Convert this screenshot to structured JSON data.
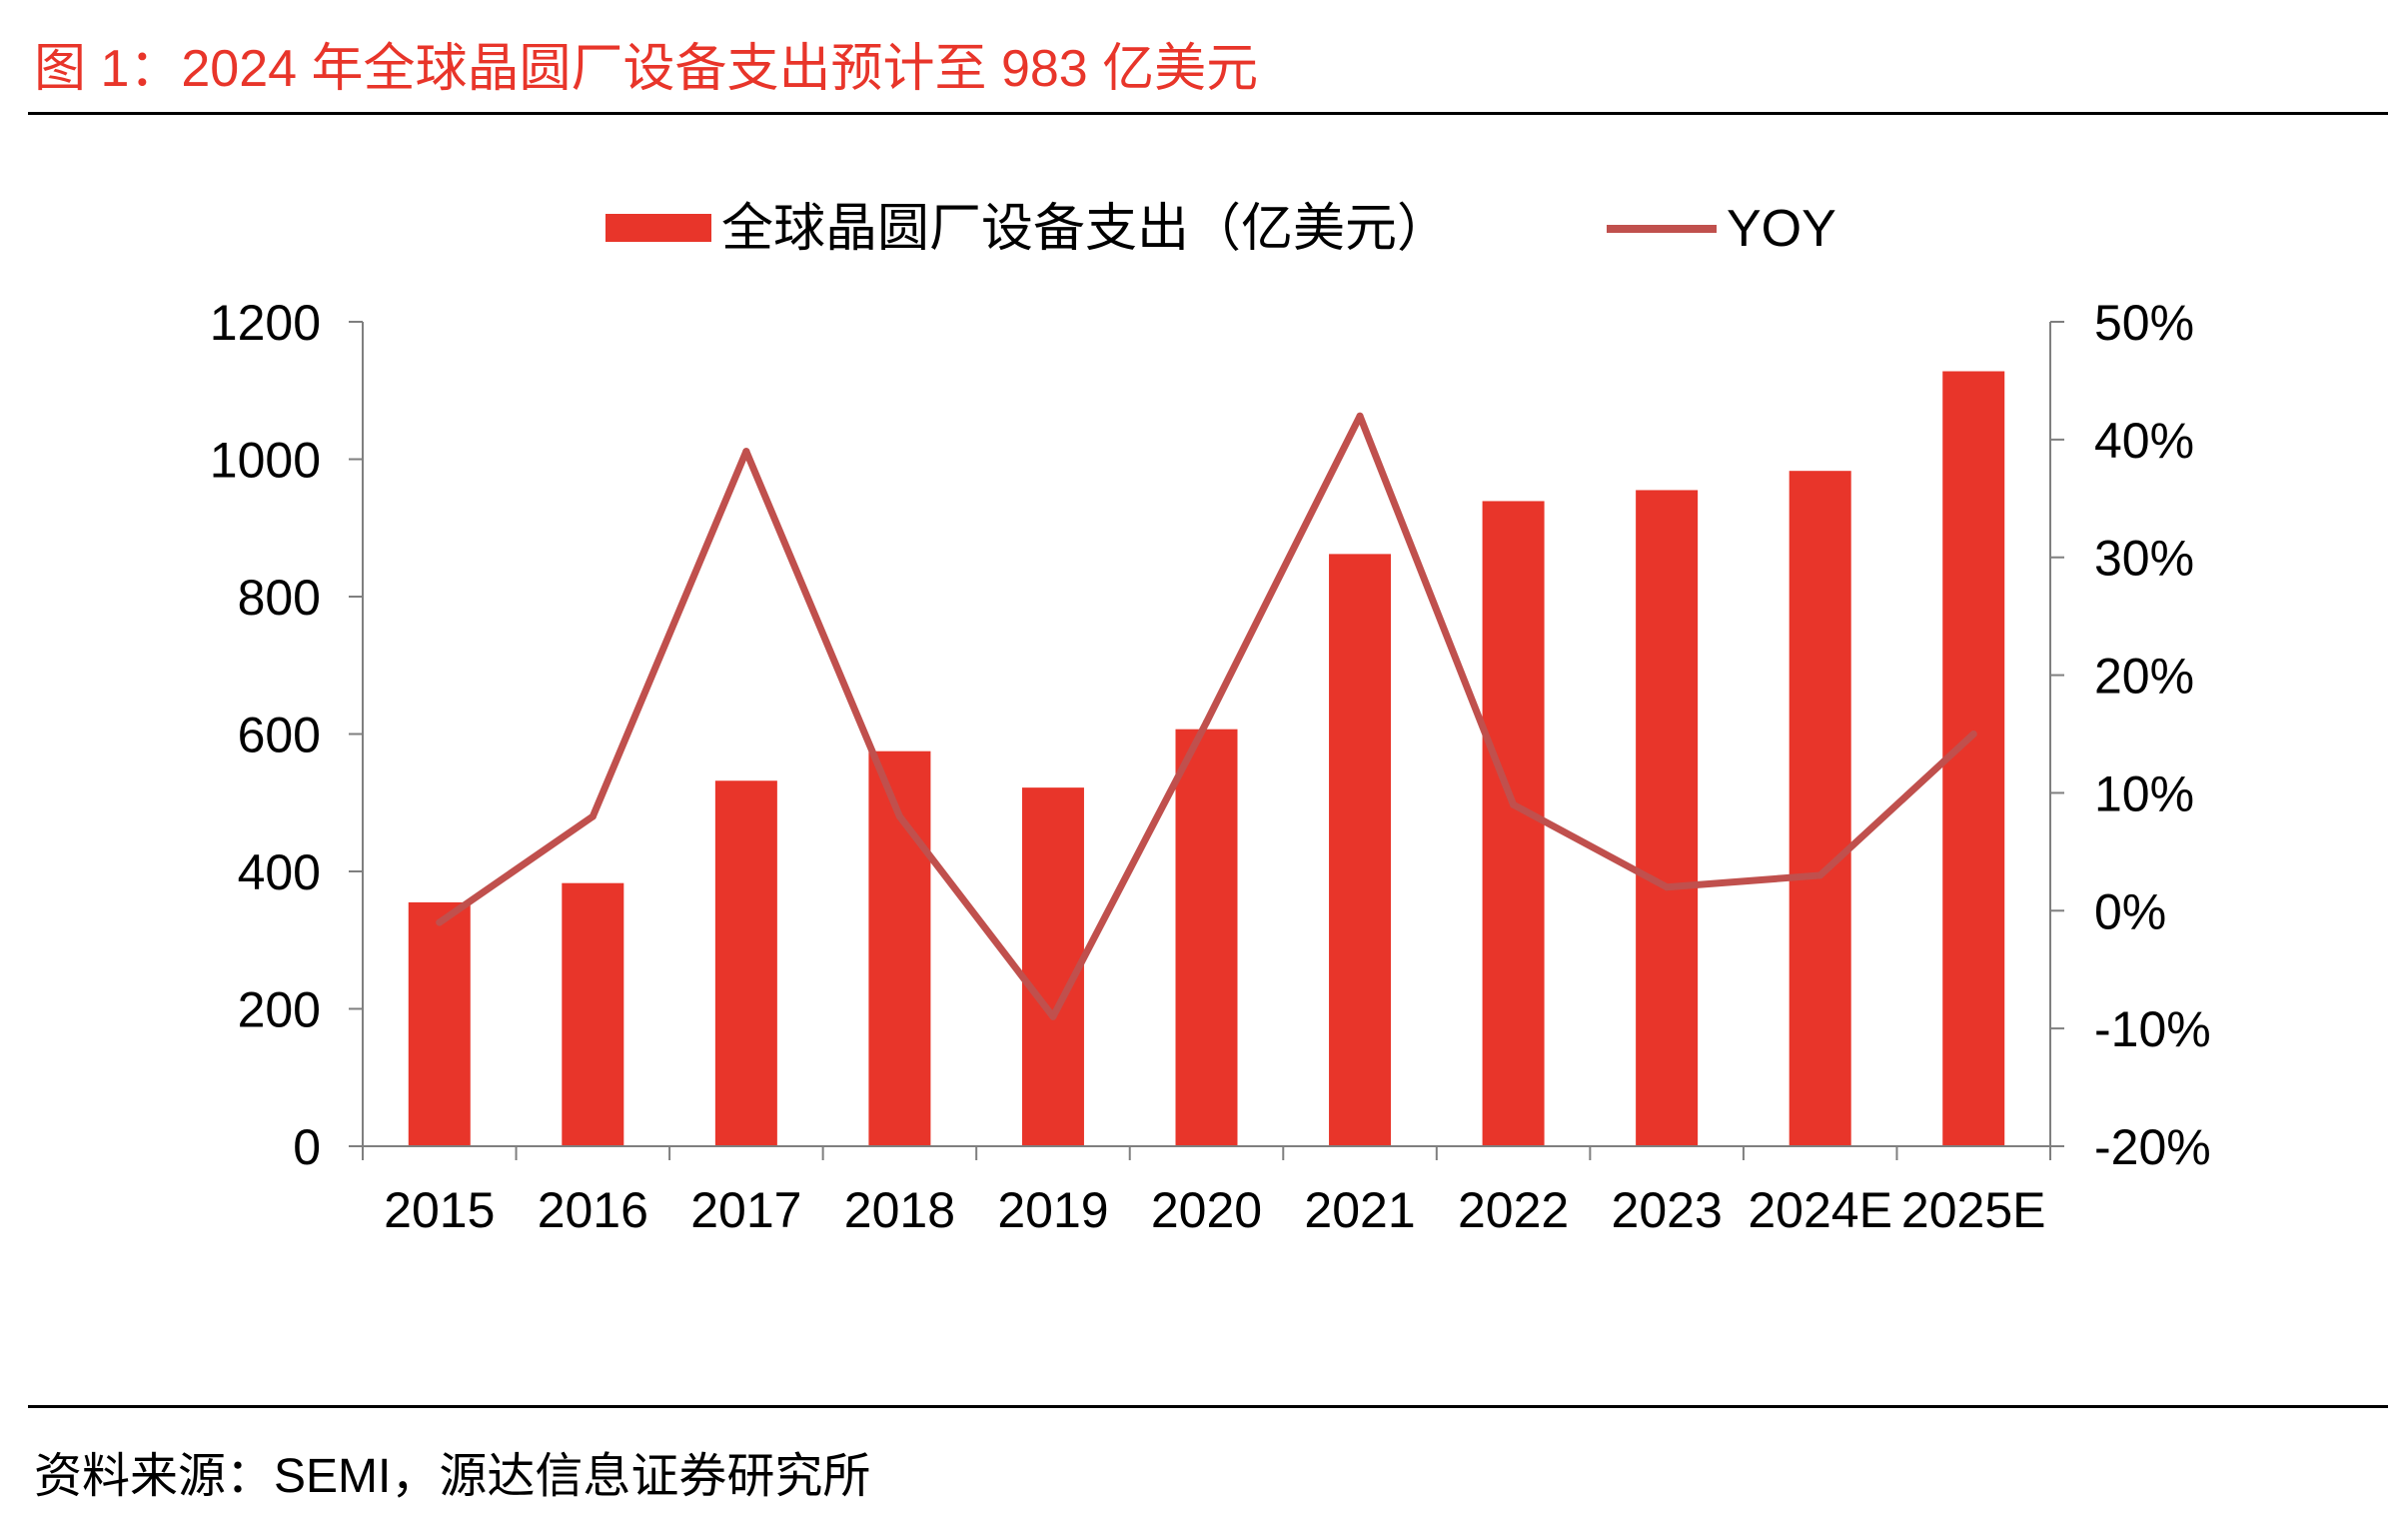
{
  "header": {
    "figure_title": "图 1：2024 年全球晶圆厂设备支出预计至 983 亿美元"
  },
  "footer": {
    "source": "资料来源：SEMI，源达信息证券研究所"
  },
  "colors": {
    "bar": "#e8352a",
    "line": "#c0504d",
    "title": "#e8352a",
    "axis": "#7f7f7f"
  },
  "chart_data": {
    "type": "bar",
    "title": "",
    "xlabel": "",
    "ylabel": "",
    "categories": [
      "2015",
      "2016",
      "2017",
      "2018",
      "2019",
      "2020",
      "2021",
      "2022",
      "2023",
      "2024E",
      "2025E"
    ],
    "series": [
      {
        "name": "全球晶圆厂设备支出（亿美元）",
        "type": "bar",
        "axis": "left",
        "values": [
          355,
          383,
          532,
          575,
          522,
          607,
          862,
          939,
          955,
          983,
          1128
        ]
      },
      {
        "name": "YOY",
        "type": "line",
        "axis": "right",
        "values": [
          -1,
          8,
          39,
          8,
          -9,
          16,
          42,
          9,
          2,
          3,
          15
        ]
      }
    ],
    "ylim": [
      0,
      1200
    ],
    "y_ticks": [
      "0",
      "200",
      "400",
      "600",
      "800",
      "1000",
      "1200"
    ],
    "y2lim": [
      -20,
      50
    ],
    "y2_ticks": [
      "-20%",
      "-10%",
      "0%",
      "10%",
      "20%",
      "30%",
      "40%",
      "50%"
    ],
    "legend_position": "top-center",
    "grid": false
  }
}
